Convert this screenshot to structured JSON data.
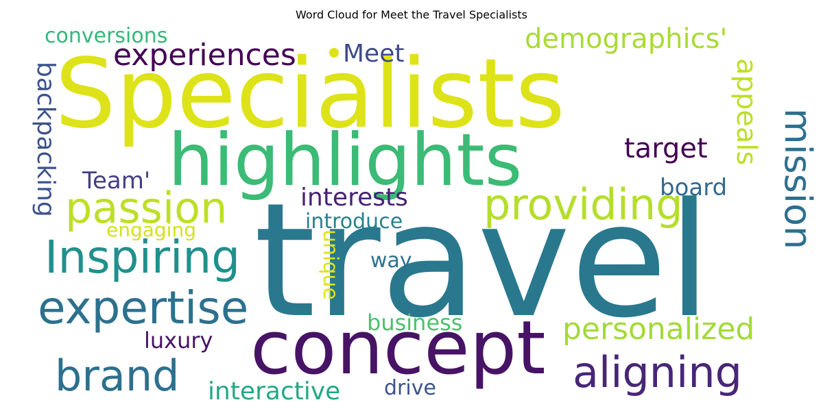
{
  "title": "Word Cloud for Meet the Travel Specialists",
  "words": [
    {
      "text": "Specialists",
      "color": "#dde318"
    },
    {
      "text": "travel",
      "color": "#2a788e"
    },
    {
      "text": "highlights",
      "color": "#3bbb75"
    },
    {
      "text": "concept",
      "color": "#471365"
    },
    {
      "text": "Inspiring",
      "color": "#21908d"
    },
    {
      "text": "expertise",
      "color": "#2c718e"
    },
    {
      "text": "passion",
      "color": "#bddf26"
    },
    {
      "text": "providing",
      "color": "#b5de2b"
    },
    {
      "text": "aligning",
      "color": "#482677"
    },
    {
      "text": "brand",
      "color": "#2d708e"
    },
    {
      "text": "mission",
      "color": "#2e6f8e"
    },
    {
      "text": "experiences",
      "color": "#440154"
    },
    {
      "text": "personalized",
      "color": "#a2da37"
    },
    {
      "text": "demographics'",
      "color": "#a8db34"
    },
    {
      "text": "appeals",
      "color": "#bddf26"
    },
    {
      "text": "backpacking",
      "color": "#3b528b"
    },
    {
      "text": "Meet",
      "color": "#3e4a89"
    },
    {
      "text": "conversions",
      "color": "#35b779"
    },
    {
      "text": "target",
      "color": "#440154"
    },
    {
      "text": "Team'",
      "color": "#433e85"
    },
    {
      "text": "board",
      "color": "#31688e"
    },
    {
      "text": "interests",
      "color": "#482173"
    },
    {
      "text": "introduce",
      "color": "#26828e"
    },
    {
      "text": "engaging",
      "color": "#d2e21b"
    },
    {
      "text": "unique",
      "color": "#dde318"
    },
    {
      "text": "way",
      "color": "#2c718e"
    },
    {
      "text": "business",
      "color": "#4ac16d"
    },
    {
      "text": "luxury",
      "color": "#471365"
    },
    {
      "text": "interactive",
      "color": "#22a884"
    },
    {
      "text": "drive",
      "color": "#3b528b"
    }
  ]
}
